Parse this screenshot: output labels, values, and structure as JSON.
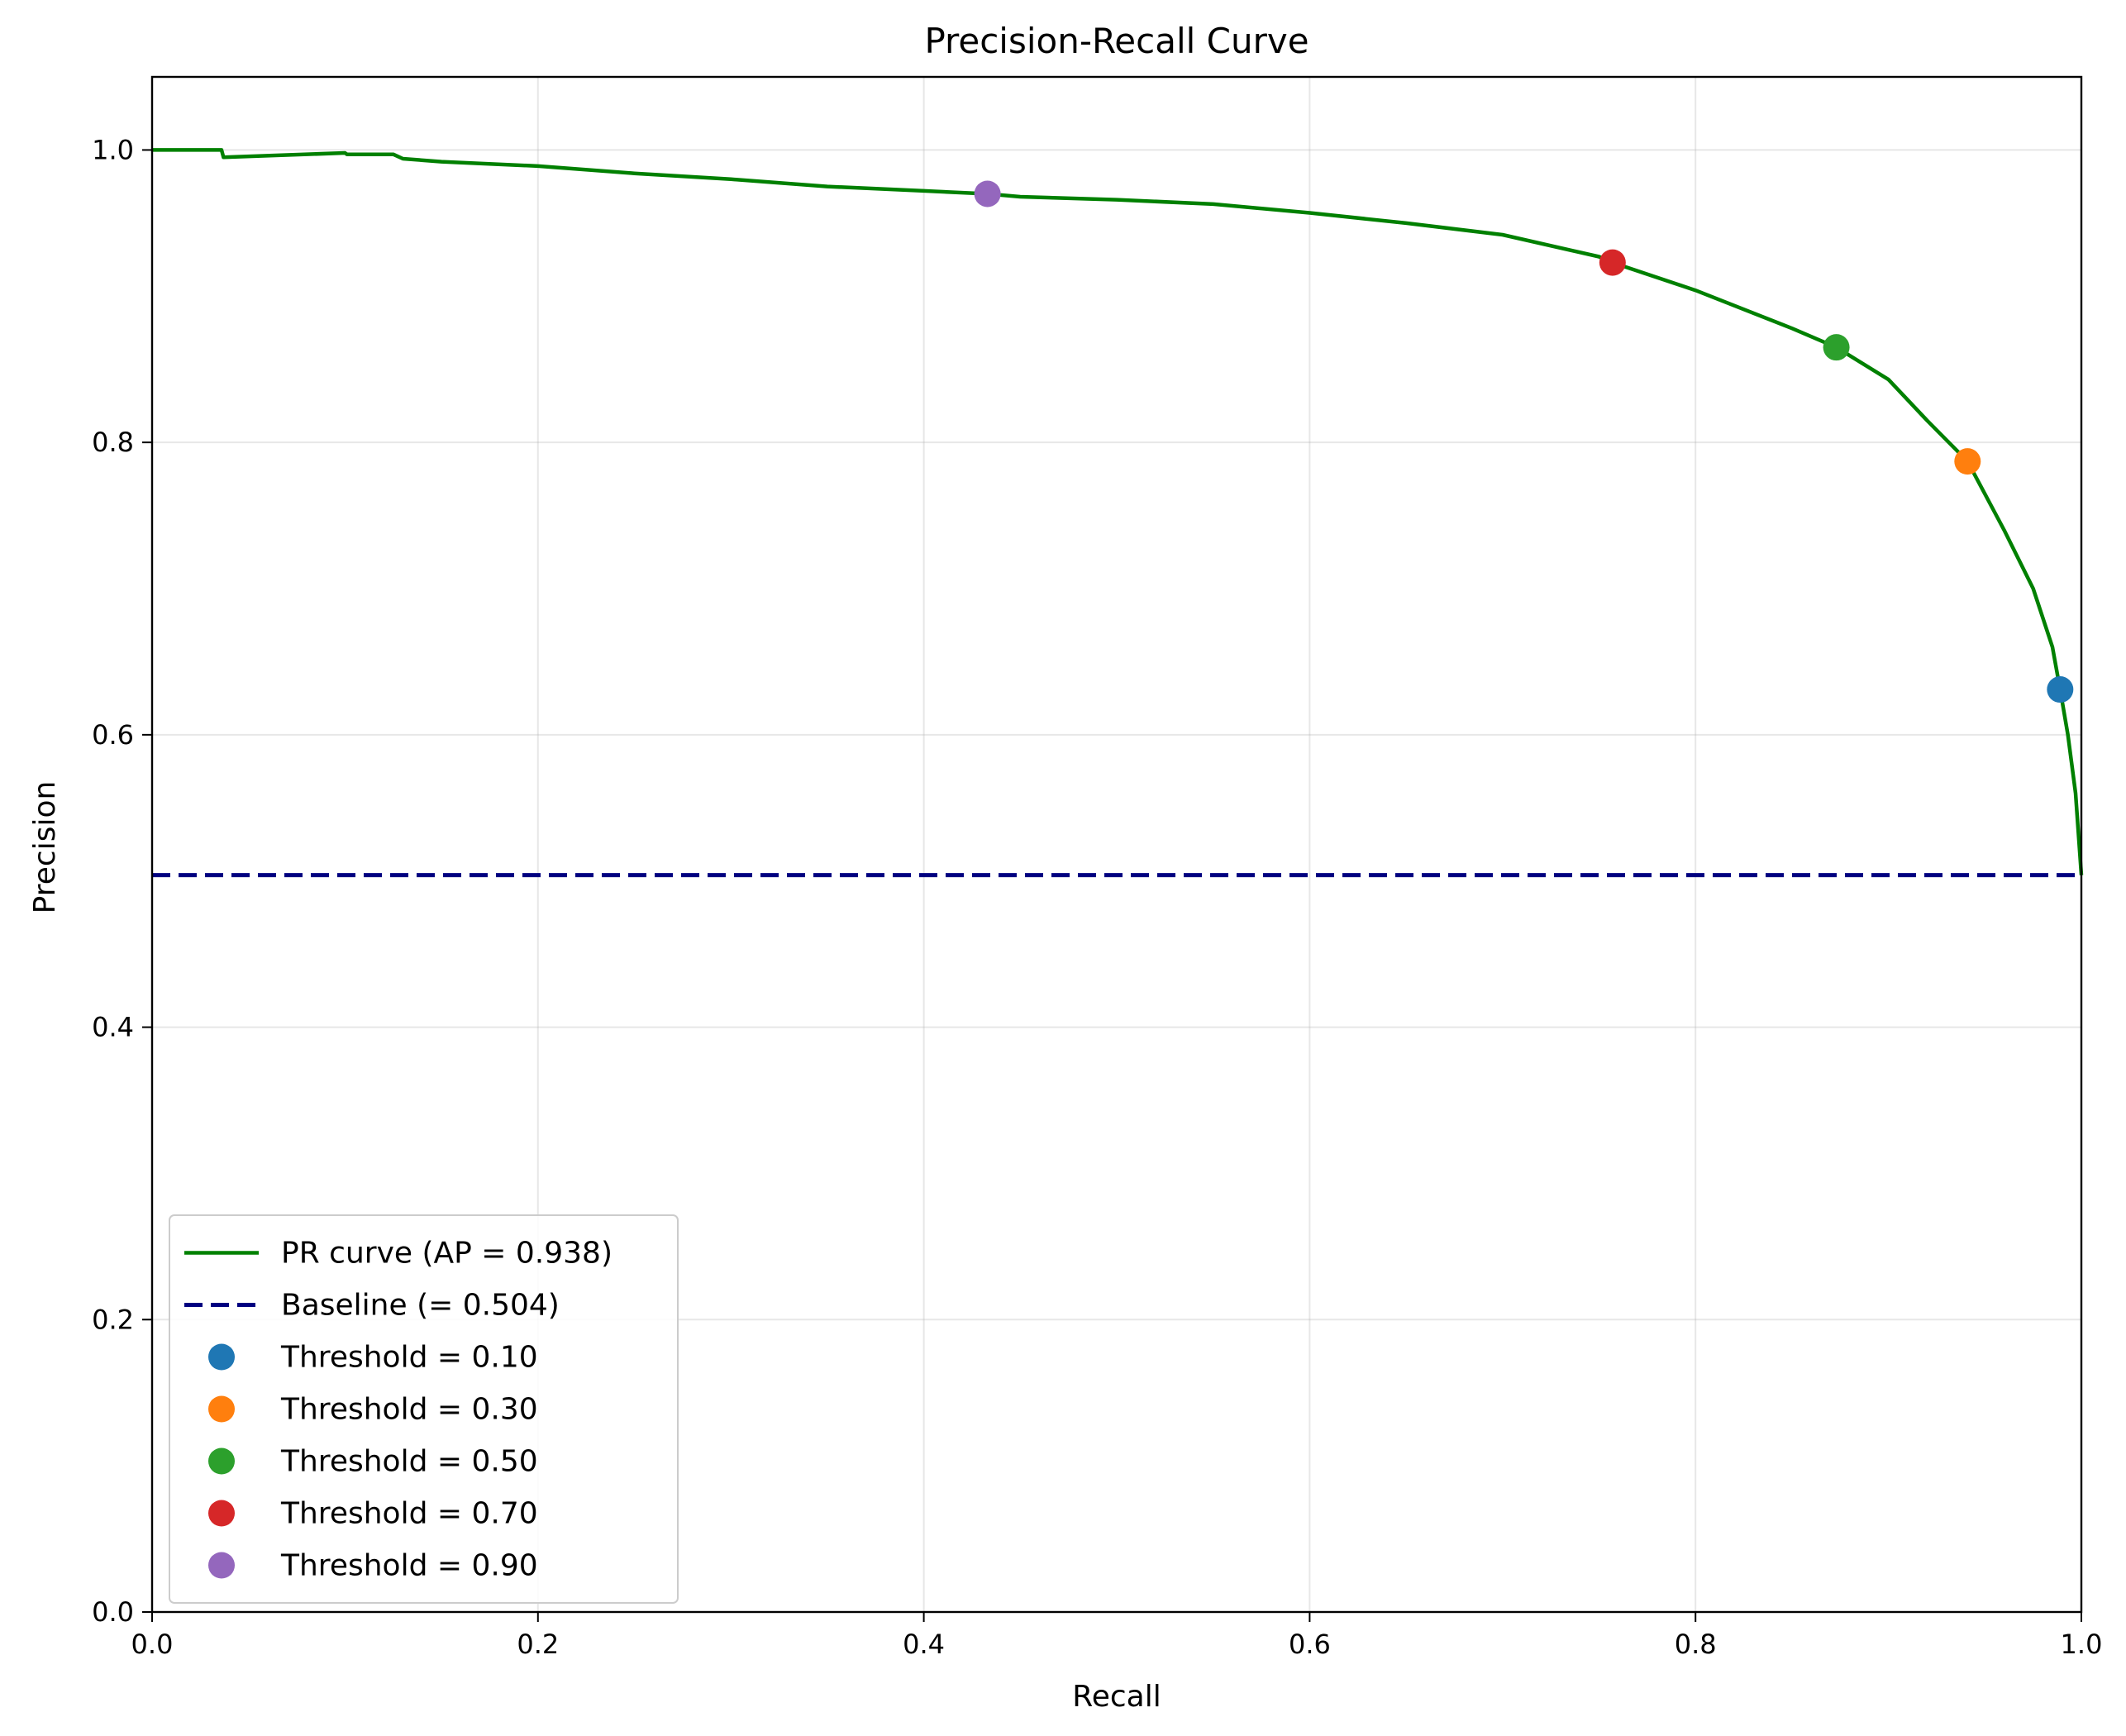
{
  "chart_data": {
    "type": "line",
    "title": "Precision-Recall Curve",
    "xlabel": "Recall",
    "ylabel": "Precision",
    "xlim": [
      0,
      1
    ],
    "ylim": [
      0,
      1.05
    ],
    "xticks": [
      0.0,
      0.2,
      0.4,
      0.6,
      0.8,
      1.0
    ],
    "yticks": [
      0.0,
      0.2,
      0.4,
      0.6,
      0.8,
      1.0
    ],
    "xtick_labels": [
      "0.0",
      "0.2",
      "0.4",
      "0.6",
      "0.8",
      "1.0"
    ],
    "ytick_labels": [
      "0.0",
      "0.2",
      "0.4",
      "0.6",
      "0.8",
      "1.0"
    ],
    "grid": true,
    "legend_position": "lower-left",
    "series": [
      {
        "name": "PR curve (AP = 0.938)",
        "color": "#008000",
        "style": "solid",
        "x": [
          0.0,
          0.036,
          0.037,
          0.1,
          0.101,
          0.125,
          0.13,
          0.15,
          0.2,
          0.25,
          0.3,
          0.35,
          0.4,
          0.433,
          0.45,
          0.5,
          0.55,
          0.6,
          0.65,
          0.7,
          0.75,
          0.757,
          0.8,
          0.85,
          0.873,
          0.9,
          0.92,
          0.941,
          0.96,
          0.975,
          0.985,
          0.989,
          0.993,
          0.997,
          1.0
        ],
        "y": [
          1.0,
          1.0,
          0.995,
          0.998,
          0.997,
          0.997,
          0.994,
          0.992,
          0.989,
          0.984,
          0.98,
          0.975,
          0.972,
          0.97,
          0.968,
          0.966,
          0.963,
          0.957,
          0.95,
          0.942,
          0.927,
          0.923,
          0.904,
          0.878,
          0.865,
          0.843,
          0.815,
          0.787,
          0.74,
          0.7,
          0.66,
          0.631,
          0.6,
          0.56,
          0.504
        ]
      },
      {
        "name": "Baseline (= 0.504)",
        "color": "#000080",
        "style": "dashed",
        "x": [
          0.0,
          1.0
        ],
        "y": [
          0.504,
          0.504
        ]
      }
    ],
    "points": [
      {
        "name": "Threshold = 0.10",
        "color": "#1f77b4",
        "x": 0.989,
        "y": 0.631
      },
      {
        "name": "Threshold = 0.30",
        "color": "#ff7f0e",
        "x": 0.941,
        "y": 0.787
      },
      {
        "name": "Threshold = 0.50",
        "color": "#2ca02c",
        "x": 0.873,
        "y": 0.865
      },
      {
        "name": "Threshold = 0.70",
        "color": "#d62728",
        "x": 0.757,
        "y": 0.923
      },
      {
        "name": "Threshold = 0.90",
        "color": "#9467bd",
        "x": 0.433,
        "y": 0.97
      }
    ]
  }
}
